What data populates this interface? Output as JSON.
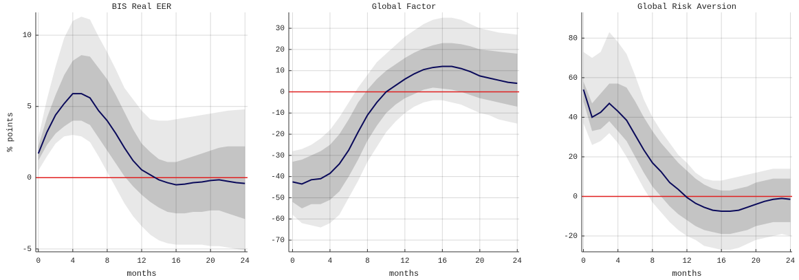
{
  "chart_data": [
    {
      "type": "line",
      "title": "BIS Real EER",
      "x_label": "months",
      "y_label": "% points",
      "x": [
        0,
        1,
        2,
        3,
        4,
        5,
        6,
        7,
        8,
        9,
        10,
        11,
        12,
        13,
        14,
        15,
        16,
        17,
        18,
        19,
        20,
        21,
        22,
        23,
        24
      ],
      "xlim": [
        -0.3,
        24.3
      ],
      "xticks": [
        0,
        4,
        8,
        12,
        16,
        20,
        24
      ],
      "ylim": [
        -5.2,
        11.6
      ],
      "yticks": [
        -5,
        0,
        5,
        10
      ],
      "grid": true,
      "reference_line": 0,
      "reference_color": "#e02020",
      "bands": [
        {
          "color": "#e8e8e8",
          "upper": [
            2.8,
            5.5,
            7.8,
            9.8,
            11.0,
            11.3,
            11.1,
            9.9,
            8.8,
            7.6,
            6.3,
            5.5,
            4.7,
            4.1,
            4.0,
            4.0,
            4.1,
            4.2,
            4.3,
            4.4,
            4.5,
            4.6,
            4.7,
            4.75,
            4.8
          ],
          "lower": [
            0.5,
            1.5,
            2.4,
            2.9,
            3.0,
            2.9,
            2.5,
            1.5,
            0.4,
            -0.7,
            -1.8,
            -2.7,
            -3.4,
            -4.0,
            -4.4,
            -4.6,
            -4.7,
            -4.7,
            -4.7,
            -4.7,
            -4.8,
            -4.8,
            -4.9,
            -5.0,
            -5.1
          ]
        },
        {
          "color": "#c4c4c4",
          "upper": [
            2.2,
            4.2,
            5.8,
            7.2,
            8.2,
            8.6,
            8.5,
            7.7,
            6.9,
            5.8,
            4.6,
            3.4,
            2.4,
            1.8,
            1.3,
            1.1,
            1.1,
            1.3,
            1.5,
            1.7,
            1.9,
            2.1,
            2.2,
            2.2,
            2.2
          ],
          "lower": [
            1.2,
            2.3,
            3.1,
            3.6,
            4.0,
            4.0,
            3.7,
            2.8,
            1.9,
            1.0,
            0.1,
            -0.6,
            -1.2,
            -1.7,
            -2.1,
            -2.4,
            -2.5,
            -2.5,
            -2.4,
            -2.4,
            -2.3,
            -2.3,
            -2.5,
            -2.7,
            -2.9
          ]
        }
      ],
      "series": [
        {
          "color": "#0a0a5a",
          "values": [
            1.7,
            3.2,
            4.4,
            5.2,
            5.9,
            5.9,
            5.6,
            4.7,
            4.0,
            3.1,
            2.1,
            1.2,
            0.55,
            0.2,
            -0.15,
            -0.35,
            -0.5,
            -0.45,
            -0.35,
            -0.3,
            -0.2,
            -0.15,
            -0.25,
            -0.35,
            -0.4
          ]
        }
      ]
    },
    {
      "type": "line",
      "title": "Global Factor",
      "x_label": "months",
      "x": [
        0,
        1,
        2,
        3,
        4,
        5,
        6,
        7,
        8,
        9,
        10,
        11,
        12,
        13,
        14,
        15,
        16,
        17,
        18,
        19,
        20,
        21,
        22,
        23,
        24
      ],
      "xlim": [
        -0.4,
        24.2
      ],
      "xticks": [
        0,
        4,
        8,
        12,
        16,
        20,
        24
      ],
      "ylim": [
        -75.5,
        37.5
      ],
      "yticks": [
        -70,
        -60,
        -50,
        -40,
        -30,
        -20,
        -10,
        0,
        10,
        20,
        30
      ],
      "grid": true,
      "reference_line": 0,
      "reference_color": "#e02020",
      "bands": [
        {
          "color": "#e8e8e8",
          "upper": [
            -28,
            -27,
            -25,
            -22,
            -18,
            -12,
            -5,
            2,
            8,
            14,
            18,
            22,
            26,
            29,
            32,
            34,
            35,
            35,
            34,
            32,
            30,
            29,
            28,
            27.5,
            27
          ],
          "lower": [
            -58,
            -62,
            -63,
            -64,
            -62,
            -58,
            -50,
            -42,
            -33,
            -26,
            -19,
            -14,
            -10,
            -7,
            -5,
            -4,
            -4,
            -5,
            -6,
            -8,
            -10,
            -11,
            -13,
            -14,
            -15
          ]
        },
        {
          "color": "#c4c4c4",
          "upper": [
            -33,
            -32,
            -30,
            -28,
            -25,
            -20,
            -13,
            -5,
            1,
            6,
            10,
            13,
            16,
            18.5,
            20.5,
            22,
            23,
            23,
            22.5,
            21.5,
            20,
            19.5,
            19,
            18.5,
            18
          ],
          "lower": [
            -52,
            -55,
            -53,
            -53,
            -51,
            -47,
            -40,
            -32,
            -23,
            -16,
            -10,
            -6,
            -3,
            -1,
            1,
            2,
            1.5,
            1,
            0,
            -1.5,
            -3,
            -4,
            -5,
            -6,
            -7
          ]
        }
      ],
      "series": [
        {
          "color": "#0a0a5a",
          "values": [
            -42.5,
            -43.5,
            -41.5,
            -41,
            -38.5,
            -34,
            -27.5,
            -19,
            -11,
            -5,
            0,
            3,
            6,
            8.5,
            10.5,
            11.5,
            12,
            12,
            11,
            9.5,
            7.5,
            6.5,
            5.5,
            4.5,
            4
          ]
        }
      ]
    },
    {
      "type": "line",
      "title": "Global Risk Aversion",
      "x_label": "months",
      "x": [
        0,
        1,
        2,
        3,
        4,
        5,
        6,
        7,
        8,
        9,
        10,
        11,
        12,
        13,
        14,
        15,
        16,
        17,
        18,
        19,
        20,
        21,
        22,
        23,
        24
      ],
      "xlim": [
        -0.2,
        24.2
      ],
      "xticks": [
        0,
        4,
        8,
        12,
        16,
        20,
        24
      ],
      "ylim": [
        -28,
        93
      ],
      "yticks": [
        -20,
        0,
        20,
        40,
        60,
        80
      ],
      "grid": true,
      "reference_line": 0,
      "reference_color": "#e02020",
      "bands": [
        {
          "color": "#e8e8e8",
          "upper": [
            73,
            70,
            73,
            83,
            78,
            72,
            61,
            49,
            40,
            33,
            27,
            21,
            17,
            12,
            9,
            8,
            8,
            9,
            10,
            11,
            12,
            13,
            14,
            14,
            14
          ],
          "lower": [
            37,
            26,
            28,
            32,
            27,
            20,
            12,
            4,
            -3,
            -8,
            -13,
            -17,
            -20,
            -22,
            -25,
            -26,
            -27,
            -27,
            -26,
            -24,
            -22,
            -21,
            -20,
            -19,
            -20
          ]
        },
        {
          "color": "#c4c4c4",
          "upper": [
            58,
            47,
            52,
            57,
            57,
            55,
            48,
            40,
            33,
            27,
            22,
            17,
            13,
            9,
            6,
            4,
            3,
            3,
            4,
            5,
            7,
            8,
            9,
            9,
            9
          ],
          "lower": [
            48,
            33,
            34,
            38,
            33,
            28,
            20,
            12,
            5,
            0,
            -5,
            -9,
            -12,
            -15,
            -17,
            -18,
            -19,
            -19,
            -18,
            -17,
            -15,
            -14,
            -13,
            -13,
            -13
          ]
        }
      ],
      "series": [
        {
          "color": "#0a0a5a",
          "values": [
            54,
            40,
            42.5,
            47,
            43,
            38.5,
            31,
            23.5,
            17,
            12.5,
            7,
            3.5,
            -0.5,
            -3.5,
            -5.5,
            -7,
            -7.5,
            -7.5,
            -7,
            -5.5,
            -4,
            -2.5,
            -1.5,
            -1,
            -1.5
          ]
        }
      ]
    }
  ]
}
